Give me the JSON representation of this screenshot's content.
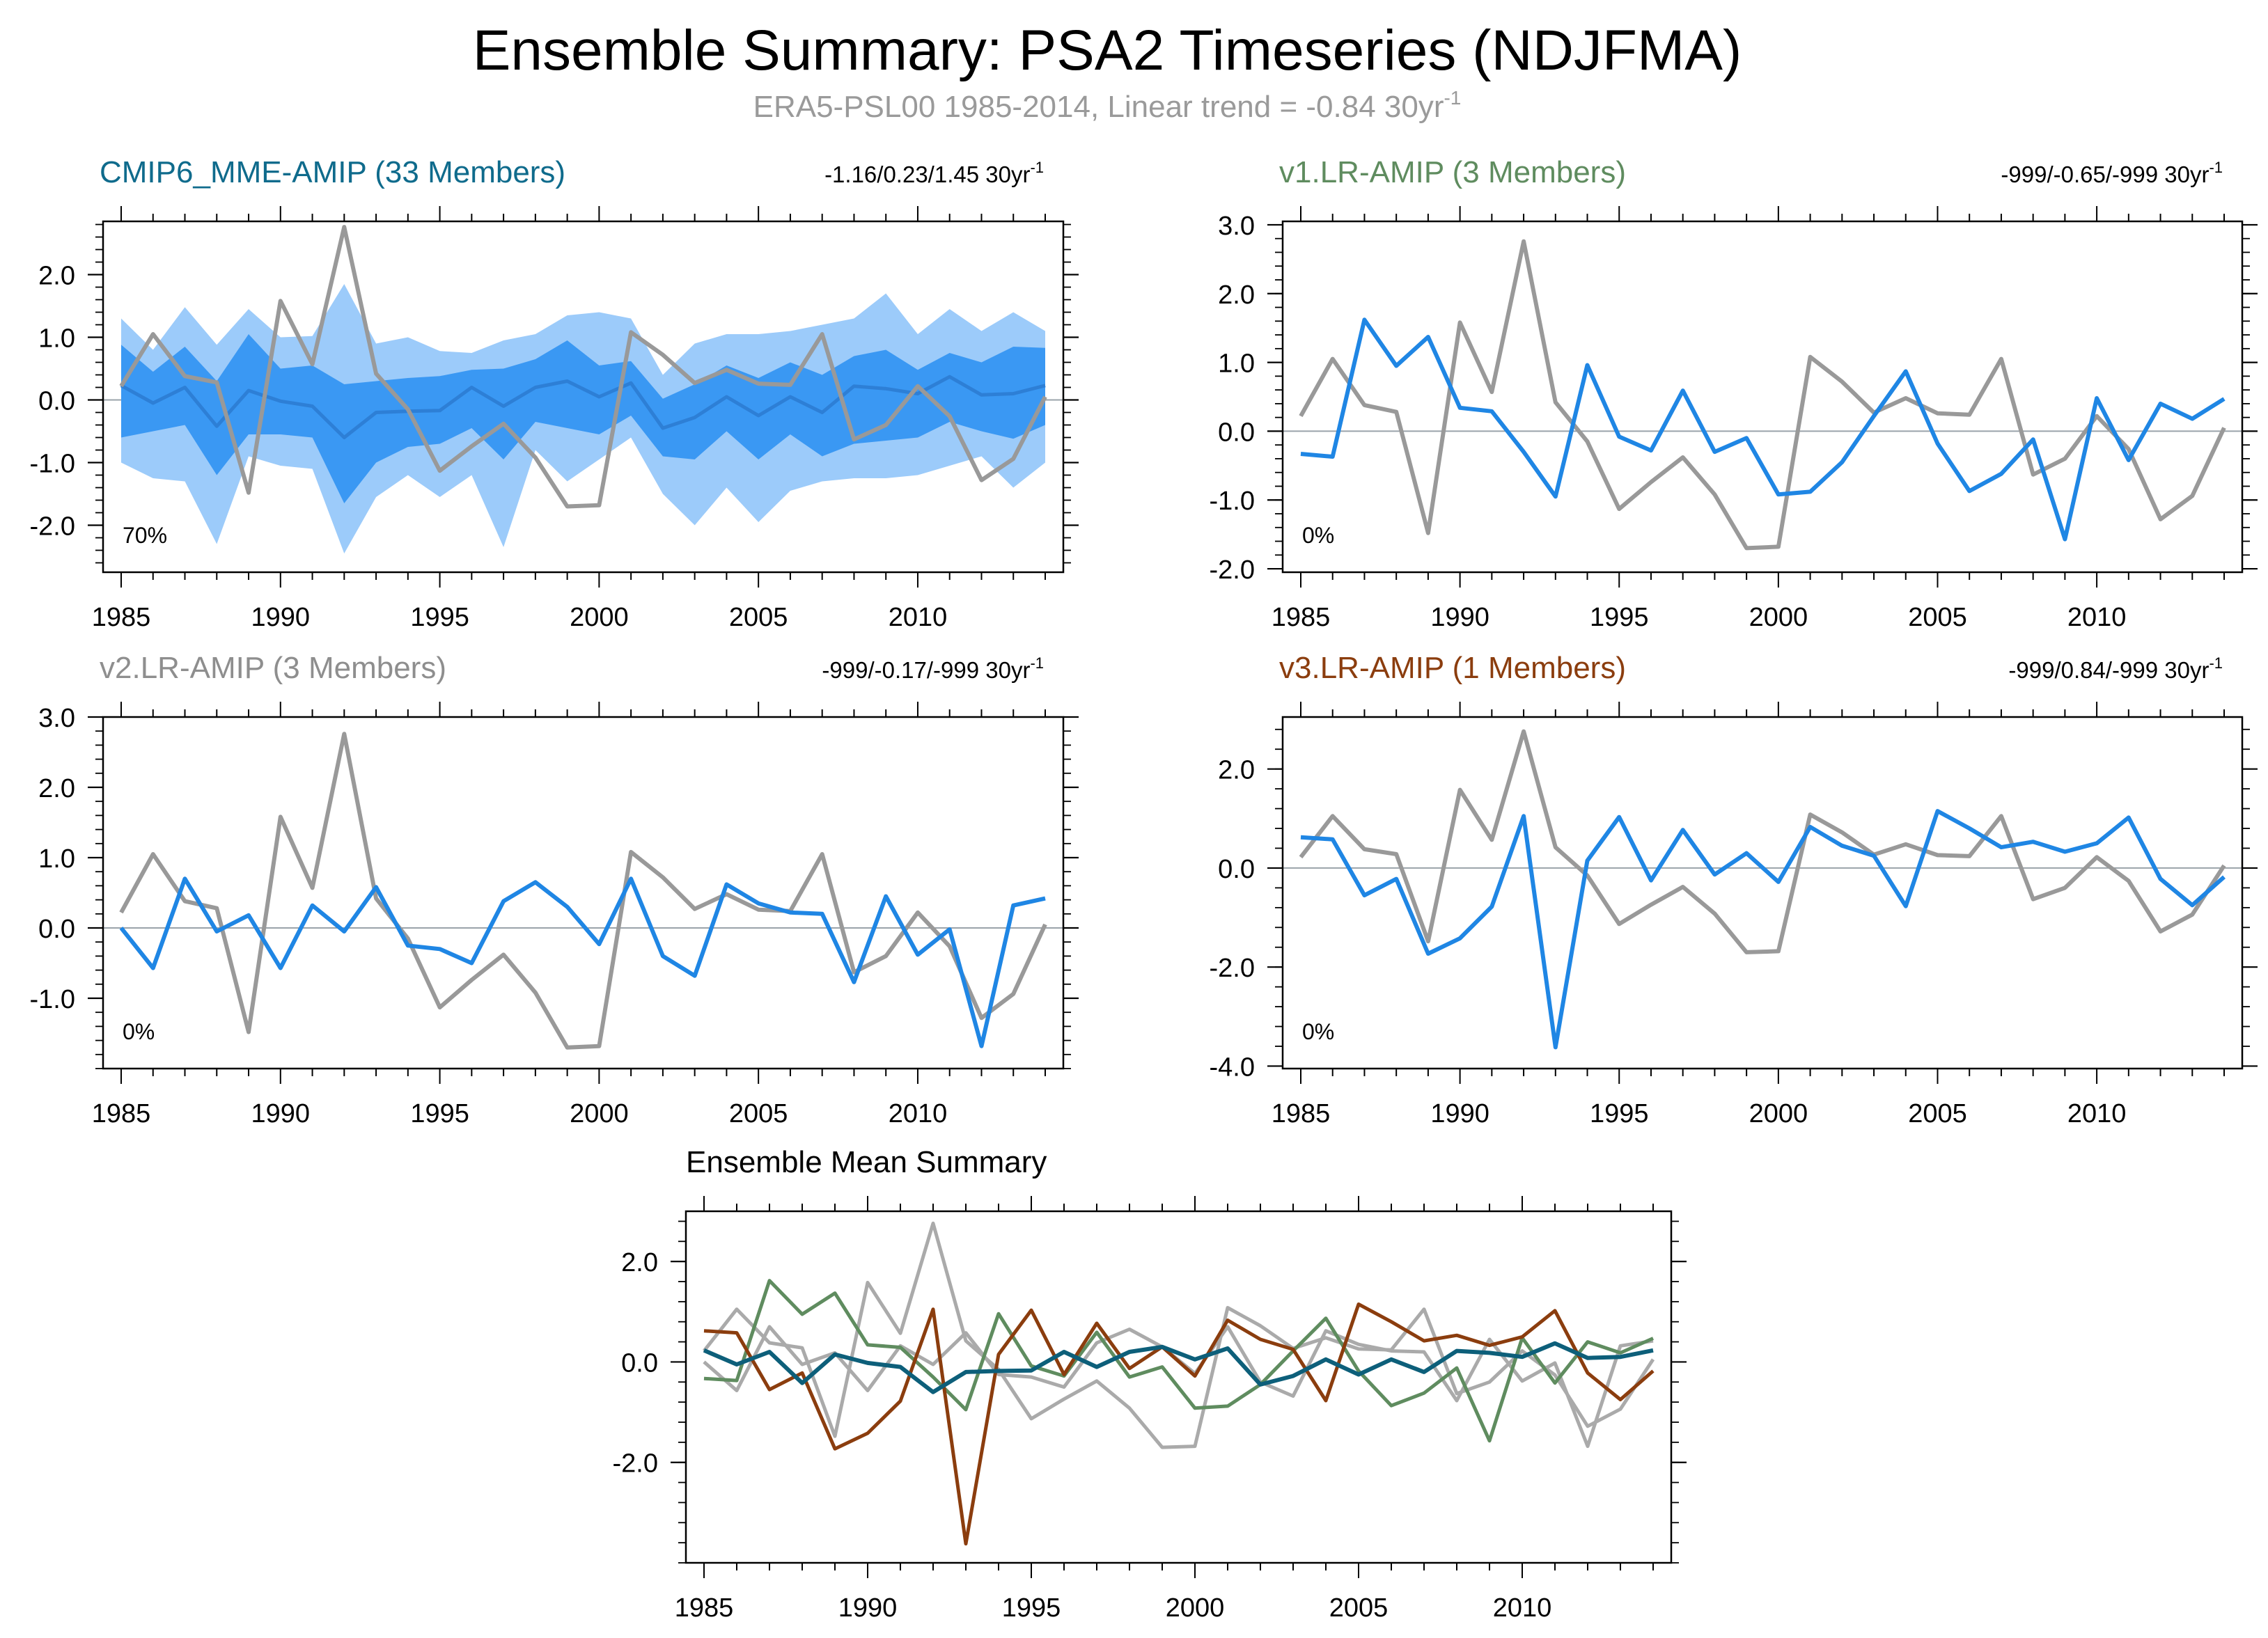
{
  "figure": {
    "title": "Ensemble Summary: PSA2 Timeseries (NDJFMA)",
    "subtitle_main": "ERA5-PSL00 1985-2014, Linear trend = -0.84 30yr",
    "subtitle_sup": "-1"
  },
  "colors": {
    "obs": "#999999",
    "model": "#1f86e4",
    "mme_mean": "#2d7fd6",
    "band_outer": "#9ccbfa",
    "band_inner": "#3a98f3",
    "zero_line": "#9aa3aa",
    "cmip6_title": "#0f6b8c",
    "v1_title": "#5f8c5f",
    "v2_title": "#8e8e8e",
    "v3_title": "#8b3d0e",
    "summary_cmip6": "#0d5f7a",
    "summary_v1": "#5f8c5f",
    "summary_v2": "#aaaaaa",
    "summary_v3": "#8b3d0e"
  },
  "chart_data": [
    {
      "id": "cmip6",
      "type": "line",
      "title": "CMIP6_MME-AMIP (33 Members)",
      "trend_text": "-1.16/0.23/1.45 30yr",
      "trend_sup": "-1",
      "pct_label": "70%",
      "x": [
        1985,
        1986,
        1987,
        1988,
        1989,
        1990,
        1991,
        1992,
        1993,
        1994,
        1995,
        1996,
        1997,
        1998,
        1999,
        2000,
        2001,
        2002,
        2003,
        2004,
        2005,
        2006,
        2007,
        2008,
        2009,
        2010,
        2011,
        2012,
        2013,
        2014
      ],
      "xticks": [
        1985,
        1990,
        1995,
        2000,
        2005,
        2010
      ],
      "yticks": [
        -2,
        -1,
        0,
        1,
        2
      ],
      "ylim": [
        -2.75,
        2.85
      ],
      "observed": [
        0.22,
        1.05,
        0.38,
        0.28,
        -1.48,
        1.58,
        0.57,
        2.76,
        0.42,
        -0.15,
        -1.13,
        -0.74,
        -0.38,
        -0.92,
        -1.7,
        -1.68,
        1.08,
        0.72,
        0.27,
        0.48,
        0.26,
        0.24,
        1.05,
        -0.63,
        -0.4,
        0.22,
        -0.26,
        -1.28,
        -0.94,
        0.05
      ],
      "ensemble_mean": [
        0.23,
        -0.05,
        0.2,
        -0.42,
        0.15,
        -0.02,
        -0.1,
        -0.6,
        -0.2,
        -0.18,
        -0.17,
        0.2,
        -0.1,
        0.2,
        0.3,
        0.05,
        0.27,
        -0.45,
        -0.28,
        0.05,
        -0.25,
        0.05,
        -0.2,
        0.22,
        0.18,
        0.1,
        0.37,
        0.08,
        0.1,
        0.23
      ],
      "band_inner_upper": [
        0.88,
        0.45,
        0.85,
        0.3,
        1.05,
        0.5,
        0.55,
        0.25,
        0.3,
        0.35,
        0.38,
        0.48,
        0.5,
        0.65,
        0.95,
        0.55,
        0.62,
        0.02,
        0.25,
        0.55,
        0.35,
        0.6,
        0.4,
        0.7,
        0.8,
        0.48,
        0.75,
        0.6,
        0.85,
        0.83
      ],
      "band_inner_lower": [
        -0.6,
        -0.5,
        -0.4,
        -1.2,
        -0.55,
        -0.55,
        -0.6,
        -1.65,
        -1.0,
        -0.75,
        -0.7,
        -0.45,
        -0.95,
        -0.35,
        -0.45,
        -0.55,
        -0.25,
        -0.9,
        -0.95,
        -0.5,
        -0.95,
        -0.55,
        -0.9,
        -0.7,
        -0.65,
        -0.6,
        -0.35,
        -0.5,
        -0.62,
        -0.4
      ],
      "band_outer_upper": [
        1.3,
        0.8,
        1.48,
        0.88,
        1.45,
        1.0,
        1.02,
        1.85,
        0.9,
        1.0,
        0.78,
        0.75,
        0.95,
        1.05,
        1.35,
        1.4,
        1.3,
        0.4,
        0.9,
        1.05,
        1.05,
        1.1,
        1.2,
        1.3,
        1.7,
        1.05,
        1.45,
        1.1,
        1.4,
        1.1
      ],
      "band_outer_lower": [
        -1.0,
        -1.25,
        -1.3,
        -2.3,
        -0.9,
        -1.05,
        -1.1,
        -2.45,
        -1.55,
        -1.2,
        -1.55,
        -1.2,
        -2.35,
        -0.8,
        -1.3,
        -0.95,
        -0.6,
        -1.5,
        -2.0,
        -1.4,
        -1.95,
        -1.45,
        -1.3,
        -1.25,
        -1.25,
        -1.2,
        -1.05,
        -0.9,
        -1.4,
        -1.0
      ]
    },
    {
      "id": "v1",
      "type": "line",
      "title": "v1.LR-AMIP (3 Members)",
      "trend_text": "-999/-0.65/-999 30yr",
      "trend_sup": "-1",
      "pct_label": "0%",
      "x": [
        1985,
        1986,
        1987,
        1988,
        1989,
        1990,
        1991,
        1992,
        1993,
        1994,
        1995,
        1996,
        1997,
        1998,
        1999,
        2000,
        2001,
        2002,
        2003,
        2004,
        2005,
        2006,
        2007,
        2008,
        2009,
        2010,
        2011,
        2012,
        2013,
        2014
      ],
      "xticks": [
        1985,
        1990,
        1995,
        2000,
        2005,
        2010
      ],
      "yticks": [
        -2,
        -1,
        0,
        1,
        2,
        3
      ],
      "ylim": [
        -2.05,
        3.05
      ],
      "observed": [
        0.22,
        1.05,
        0.38,
        0.28,
        -1.48,
        1.58,
        0.57,
        2.76,
        0.42,
        -0.15,
        -1.13,
        -0.74,
        -0.38,
        -0.92,
        -1.7,
        -1.68,
        1.08,
        0.72,
        0.27,
        0.48,
        0.26,
        0.24,
        1.05,
        -0.63,
        -0.4,
        0.22,
        -0.26,
        -1.28,
        -0.94,
        0.05
      ],
      "model": [
        -0.33,
        -0.37,
        1.62,
        0.95,
        1.37,
        0.34,
        0.29,
        -0.3,
        -0.95,
        0.96,
        -0.08,
        -0.28,
        0.59,
        -0.3,
        -0.1,
        -0.92,
        -0.88,
        -0.45,
        0.22,
        0.87,
        -0.18,
        -0.87,
        -0.62,
        -0.12,
        -1.57,
        0.48,
        -0.42,
        0.4,
        0.18,
        0.47
      ]
    },
    {
      "id": "v2",
      "type": "line",
      "title": "v2.LR-AMIP (3 Members)",
      "trend_text": "-999/-0.17/-999 30yr",
      "trend_sup": "-1",
      "pct_label": "0%",
      "x": [
        1985,
        1986,
        1987,
        1988,
        1989,
        1990,
        1991,
        1992,
        1993,
        1994,
        1995,
        1996,
        1997,
        1998,
        1999,
        2000,
        2001,
        2002,
        2003,
        2004,
        2005,
        2006,
        2007,
        2008,
        2009,
        2010,
        2011,
        2012,
        2013,
        2014
      ],
      "xticks": [
        1985,
        1990,
        1995,
        2000,
        2005,
        2010
      ],
      "yticks": [
        -1,
        0,
        1,
        2,
        3
      ],
      "ylim": [
        -2.0,
        3.0
      ],
      "observed": [
        0.22,
        1.05,
        0.38,
        0.28,
        -1.48,
        1.58,
        0.57,
        2.76,
        0.42,
        -0.15,
        -1.13,
        -0.74,
        -0.38,
        -0.92,
        -1.7,
        -1.68,
        1.08,
        0.72,
        0.27,
        0.48,
        0.26,
        0.24,
        1.05,
        -0.63,
        -0.4,
        0.22,
        -0.26,
        -1.28,
        -0.94,
        0.05
      ],
      "model": [
        0.0,
        -0.57,
        0.7,
        -0.05,
        0.18,
        -0.57,
        0.32,
        -0.05,
        0.58,
        -0.25,
        -0.3,
        -0.5,
        0.38,
        0.65,
        0.3,
        -0.23,
        0.7,
        -0.4,
        -0.68,
        0.62,
        0.35,
        0.22,
        0.2,
        -0.77,
        0.45,
        -0.38,
        -0.02,
        -1.68,
        0.32,
        0.42
      ]
    },
    {
      "id": "v3",
      "type": "line",
      "title": "v3.LR-AMIP (1 Members)",
      "trend_text": "-999/0.84/-999 30yr",
      "trend_sup": "-1",
      "pct_label": "0%",
      "x": [
        1985,
        1986,
        1987,
        1988,
        1989,
        1990,
        1991,
        1992,
        1993,
        1994,
        1995,
        1996,
        1997,
        1998,
        1999,
        2000,
        2001,
        2002,
        2003,
        2004,
        2005,
        2006,
        2007,
        2008,
        2009,
        2010,
        2011,
        2012,
        2013,
        2014
      ],
      "xticks": [
        1985,
        1990,
        1995,
        2000,
        2005,
        2010
      ],
      "yticks": [
        -4,
        -2,
        0,
        2
      ],
      "ylim": [
        -4.05,
        3.05
      ],
      "observed": [
        0.22,
        1.05,
        0.38,
        0.28,
        -1.48,
        1.58,
        0.57,
        2.76,
        0.42,
        -0.15,
        -1.13,
        -0.74,
        -0.38,
        -0.92,
        -1.7,
        -1.68,
        1.08,
        0.72,
        0.27,
        0.48,
        0.26,
        0.24,
        1.05,
        -0.63,
        -0.4,
        0.22,
        -0.26,
        -1.28,
        -0.94,
        0.05
      ],
      "model": [
        0.62,
        0.58,
        -0.55,
        -0.22,
        -1.73,
        -1.42,
        -0.78,
        1.05,
        -3.62,
        0.15,
        1.03,
        -0.25,
        0.77,
        -0.13,
        0.3,
        -0.28,
        0.83,
        0.45,
        0.25,
        -0.77,
        1.15,
        0.8,
        0.42,
        0.53,
        0.33,
        0.5,
        1.02,
        -0.22,
        -0.75,
        -0.18
      ]
    },
    {
      "id": "summary",
      "type": "line",
      "title": "Ensemble Mean Summary",
      "x": [
        1985,
        1986,
        1987,
        1988,
        1989,
        1990,
        1991,
        1992,
        1993,
        1994,
        1995,
        1996,
        1997,
        1998,
        1999,
        2000,
        2001,
        2002,
        2003,
        2004,
        2005,
        2006,
        2007,
        2008,
        2009,
        2010,
        2011,
        2012,
        2013,
        2014
      ],
      "xticks": [
        1985,
        1990,
        1995,
        2000,
        2005,
        2010
      ],
      "yticks": [
        -2,
        0,
        2
      ],
      "ylim": [
        -4.0,
        3.0
      ],
      "series": [
        {
          "name": "ERA5",
          "color_key": "summary_v2",
          "values": [
            0.22,
            1.05,
            0.38,
            0.28,
            -1.48,
            1.58,
            0.57,
            2.76,
            0.42,
            -0.15,
            -1.13,
            -0.74,
            -0.38,
            -0.92,
            -1.7,
            -1.68,
            1.08,
            0.72,
            0.27,
            0.48,
            0.26,
            0.24,
            1.05,
            -0.63,
            -0.4,
            0.22,
            -0.26,
            -1.28,
            -0.94,
            0.05
          ]
        },
        {
          "name": "v2.LR-AMIP",
          "color_key": "summary_v2",
          "values": [
            0.0,
            -0.57,
            0.7,
            -0.05,
            0.18,
            -0.57,
            0.32,
            -0.05,
            0.58,
            -0.25,
            -0.3,
            -0.5,
            0.38,
            0.65,
            0.3,
            -0.23,
            0.7,
            -0.4,
            -0.68,
            0.62,
            0.35,
            0.22,
            0.2,
            -0.77,
            0.45,
            -0.38,
            -0.02,
            -1.68,
            0.32,
            0.42
          ]
        },
        {
          "name": "v1.LR-AMIP",
          "color_key": "summary_v1",
          "values": [
            -0.33,
            -0.37,
            1.62,
            0.95,
            1.37,
            0.34,
            0.29,
            -0.3,
            -0.95,
            0.96,
            -0.08,
            -0.28,
            0.59,
            -0.3,
            -0.1,
            -0.92,
            -0.88,
            -0.45,
            0.22,
            0.87,
            -0.18,
            -0.87,
            -0.62,
            -0.12,
            -1.57,
            0.48,
            -0.42,
            0.4,
            0.18,
            0.47
          ]
        },
        {
          "name": "v3.LR-AMIP",
          "color_key": "summary_v3",
          "values": [
            0.62,
            0.58,
            -0.55,
            -0.22,
            -1.73,
            -1.42,
            -0.78,
            1.05,
            -3.62,
            0.15,
            1.03,
            -0.25,
            0.77,
            -0.13,
            0.3,
            -0.28,
            0.83,
            0.45,
            0.25,
            -0.77,
            1.15,
            0.8,
            0.42,
            0.53,
            0.33,
            0.5,
            1.02,
            -0.22,
            -0.75,
            -0.18
          ]
        },
        {
          "name": "CMIP6_MME-AMIP",
          "color_key": "summary_cmip6",
          "values": [
            0.23,
            -0.05,
            0.2,
            -0.42,
            0.15,
            -0.02,
            -0.1,
            -0.6,
            -0.2,
            -0.18,
            -0.17,
            0.2,
            -0.1,
            0.2,
            0.3,
            0.05,
            0.27,
            -0.45,
            -0.28,
            0.05,
            -0.25,
            0.05,
            -0.2,
            0.22,
            0.18,
            0.1,
            0.37,
            0.08,
            0.1,
            0.23
          ]
        }
      ]
    }
  ]
}
